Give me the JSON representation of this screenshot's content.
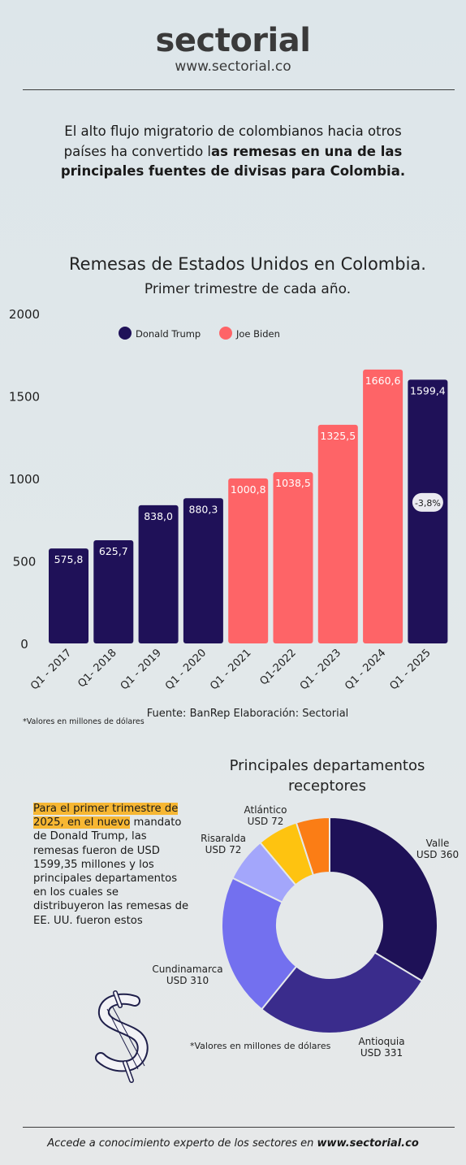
{
  "header": {
    "logo_text": "sectorial",
    "url": "www.sectorial.co"
  },
  "intro": {
    "part1": "El alto flujo migratorio de colombianos hacia otros países ha convertido l",
    "part2_bold": "as remesas en una de las principales fuentes de divisas para Colombia."
  },
  "chart_data": [
    {
      "type": "bar",
      "title": "Remesas de Estados Unidos en Colombia.",
      "subtitle": "Primer trimestre de cada año.",
      "categories": [
        "Q1 - 2017",
        "Q1- 2018",
        "Q1 - 2019",
        "Q1 - 2020",
        "Q1 - 2021",
        "Q1-2022",
        "Q1 - 2023",
        "Q1 - 2024",
        "Q1 - 2025"
      ],
      "values": [
        575.8,
        625.7,
        838.0,
        880.3,
        1000.8,
        1038.5,
        1325.5,
        1660.6,
        1599.4
      ],
      "value_labels": [
        "575,8",
        "625,7",
        "838,0",
        "880,3",
        "1000,8",
        "1038,5",
        "1325,5",
        "1660,6",
        "1599,4"
      ],
      "groups": [
        "Donald Trump",
        "Donald Trump",
        "Donald Trump",
        "Donald Trump",
        "Joe Biden",
        "Joe Biden",
        "Joe Biden",
        "Joe Biden",
        "Donald Trump"
      ],
      "legend": [
        {
          "name": "Donald Trump",
          "color": "#1f1158"
        },
        {
          "name": "Joe Biden",
          "color": "#fe6467"
        }
      ],
      "yticks": [
        "0",
        "500",
        "1000",
        "1500",
        "2000"
      ],
      "ylim": [
        0,
        2000
      ],
      "annotation": "-3,8%",
      "note": "*Valores en millones de dólares",
      "source": "Fuente: BanRep Elaboración: Sectorial"
    },
    {
      "type": "pie",
      "title": "Principales departamentos receptores",
      "labels": [
        "Valle",
        "Antioquia",
        "Cundinamarca",
        "Risaralda",
        "Atlántico"
      ],
      "value_labels": [
        "USD 360",
        "USD 331",
        "USD 310",
        "USD 72",
        "USD 72"
      ],
      "values": [
        360,
        331,
        310,
        72,
        72
      ],
      "colors": [
        "#1e1157",
        "#3a2c8c",
        "#7370ef",
        "#a3a6fb",
        "#fec310"
      ],
      "extra_slice_color": "#fb7d15",
      "note": "*Valores en millones de dólares"
    }
  ],
  "paragraph": {
    "hl1": "Para el primer trimestre de",
    "hl2": "2025, en el nuevo",
    "rest": " mandato de Donald Trump, las remesas fueron de USD 1599,35 millones  y los principales departamentos en los cuales se distribuyeron las remesas de EE. UU. fueron estos"
  },
  "footer": {
    "text": "Accede a conocimiento experto de los sectores en ",
    "link": "www.sectorial.co"
  }
}
